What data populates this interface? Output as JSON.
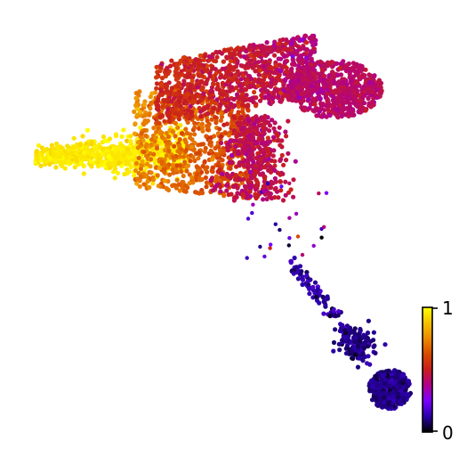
{
  "chart_data": {
    "type": "scatter",
    "title": "",
    "xlabel": "",
    "ylabel": "",
    "axes_visible": false,
    "grid": false,
    "point_count_approx": 4000,
    "colormap": "gnuplot",
    "colormap_stops": [
      "#000000",
      "#2a00a8",
      "#7a00ff",
      "#b0008c",
      "#c81e1e",
      "#d84a00",
      "#eb8a00",
      "#f6c000",
      "#ffff00"
    ],
    "colorbar": {
      "placement": "right-bottom",
      "min": 0,
      "max": 1,
      "tick_labels": [
        "0",
        "1"
      ]
    },
    "clusters": [
      {
        "region": "left-yellow-arm",
        "color_value": 0.96,
        "approx_count": 750
      },
      {
        "region": "middle-orange",
        "color_value": 0.75,
        "approx_count": 650
      },
      {
        "region": "upper-orange-red",
        "color_value": 0.55,
        "approx_count": 1050
      },
      {
        "region": "right-red-lobe",
        "color_value": 0.42,
        "approx_count": 650
      },
      {
        "region": "stem-red",
        "color_value": 0.45,
        "approx_count": 450
      },
      {
        "region": "sparse-bridge",
        "color_value": 0.2,
        "approx_count": 30
      },
      {
        "region": "purple-stalk",
        "color_value": 0.12,
        "approx_count": 130
      },
      {
        "region": "purple-blob",
        "color_value": 0.1,
        "approx_count": 500
      }
    ]
  }
}
